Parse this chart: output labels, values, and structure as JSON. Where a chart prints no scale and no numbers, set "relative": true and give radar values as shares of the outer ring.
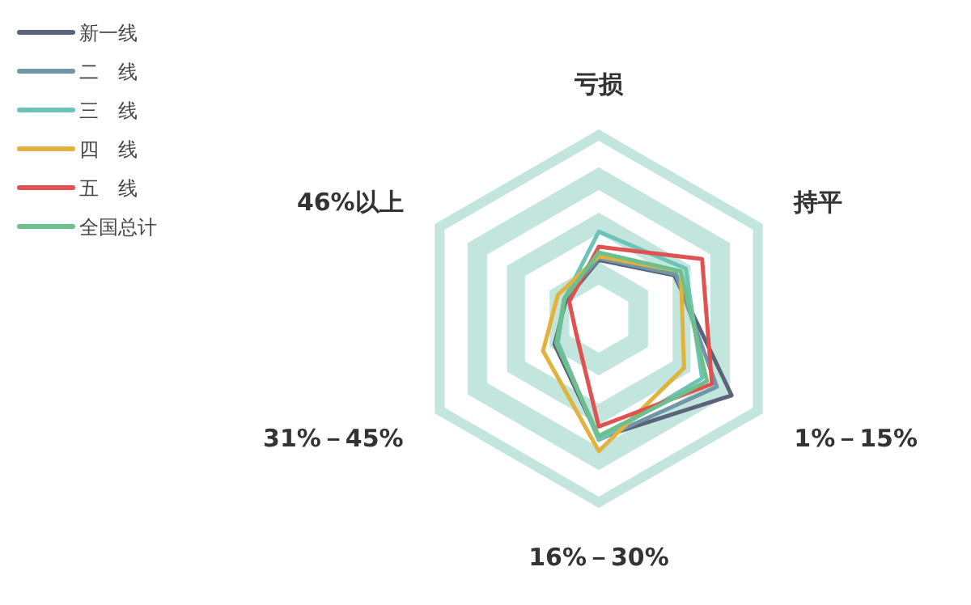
{
  "chart_data": {
    "type": "radar",
    "relative": true,
    "legend": "top left",
    "categories": [
      "亏损",
      "持平",
      "1%－15%",
      "16%－30%",
      "31%－45%",
      "46%以上"
    ],
    "series": [
      {
        "name": "新一线",
        "color": "#5b6378",
        "values": [
          0.31,
          0.46,
          0.81,
          0.63,
          0.27,
          0.2
        ]
      },
      {
        "name": "二　线",
        "color": "#6f97a8",
        "values": [
          0.32,
          0.47,
          0.72,
          0.64,
          0.25,
          0.21
        ]
      },
      {
        "name": "三　线",
        "color": "#6cc3b8",
        "values": [
          0.46,
          0.53,
          0.63,
          0.64,
          0.25,
          0.21
        ]
      },
      {
        "name": "四　线",
        "color": "#e2b33c",
        "values": [
          0.33,
          0.5,
          0.52,
          0.7,
          0.34,
          0.25
        ]
      },
      {
        "name": "五　线",
        "color": "#e05252",
        "values": [
          0.38,
          0.63,
          0.69,
          0.57,
          0.14,
          0.18
        ]
      },
      {
        "name": "全国总计",
        "color": "#6dbf8b",
        "values": [
          0.35,
          0.5,
          0.66,
          0.62,
          0.26,
          0.21
        ]
      }
    ]
  }
}
